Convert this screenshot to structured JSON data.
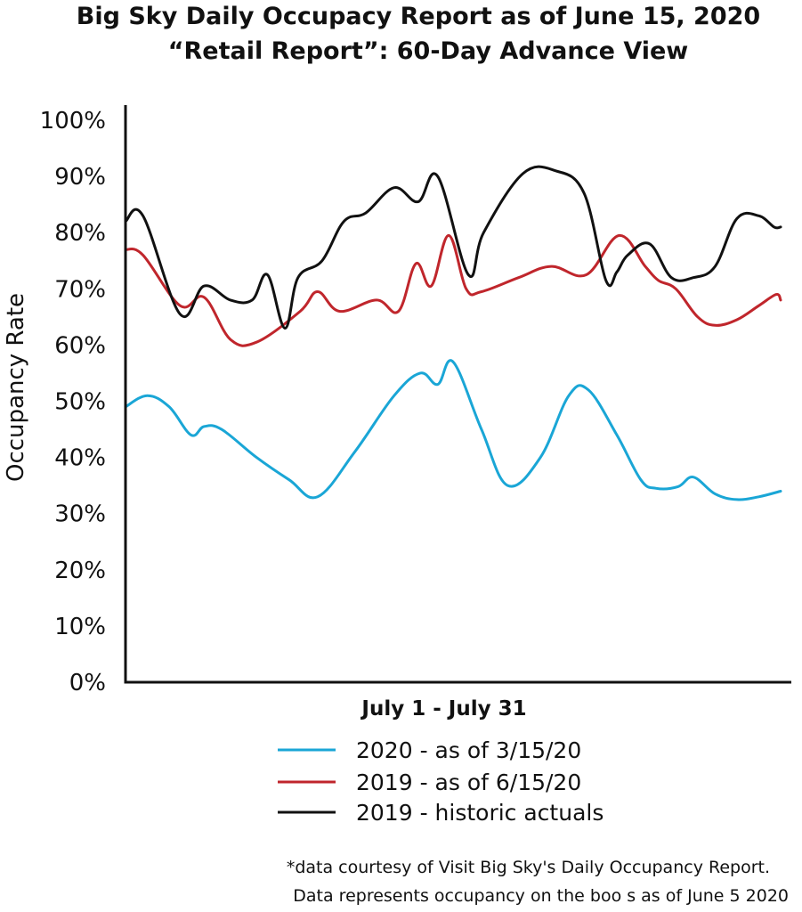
{
  "chart_data": {
    "type": "line",
    "title": "Big Sky Daily Occupacy Report  as of June 15, 2020",
    "subtitle": "“Retail Report”: 60-Day Advance View",
    "xlabel": "July 1 - July 31",
    "ylabel": "Occupancy Rate",
    "ylim": [
      0,
      100
    ],
    "xlim": [
      1,
      31
    ],
    "yticks": [
      "0%",
      "10%",
      "20%",
      "30%",
      "40%",
      "50%",
      "60%",
      "70%",
      "80%",
      "90%",
      "100%"
    ],
    "grid": false,
    "legend_position": "bottom",
    "series": [
      {
        "name": "2020 - as of 3/15/20",
        "color": "#1aa6d6",
        "x": [
          1,
          2,
          3,
          4,
          4.6,
          5.4,
          7,
          8.5,
          9.8,
          11.5,
          13.3,
          14.5,
          15.3,
          16,
          17.3,
          18.5,
          20,
          21.3,
          22.2,
          23.5,
          24.6,
          25.3,
          26.3,
          27,
          28,
          29,
          30,
          31
        ],
        "y": [
          49,
          51,
          49,
          44,
          45.5,
          45,
          40,
          36,
          33,
          41,
          51,
          55,
          53,
          57,
          45,
          35,
          40,
          51,
          52,
          44,
          36,
          34.5,
          34.8,
          36.5,
          33.5,
          32.5,
          33,
          34
        ]
      },
      {
        "name": "2019 - as of 6/15/20",
        "color": "#c0262c",
        "x": [
          1,
          1.8,
          3.5,
          4.6,
          5.8,
          7,
          9,
          9.8,
          10.8,
          12.5,
          13.5,
          14.3,
          15,
          15.8,
          16.6,
          17.3,
          19,
          20.5,
          22.1,
          23.6,
          24.8,
          25.4,
          26.2,
          27.2,
          28,
          29,
          30,
          30.8,
          31
        ],
        "y": [
          77,
          76,
          67,
          68.5,
          61,
          60.5,
          66,
          69.5,
          66,
          68,
          66,
          74.5,
          70.5,
          79.5,
          70,
          69.5,
          72,
          74,
          72.5,
          79.5,
          74,
          71.5,
          70,
          65,
          63.5,
          64.5,
          67,
          69,
          68
        ]
      },
      {
        "name": "2019 - historic actuals",
        "color": "#111111",
        "x": [
          1,
          1.8,
          3.5,
          4.6,
          5.8,
          6.8,
          7.5,
          8.3,
          8.9,
          10,
          11,
          12,
          13.3,
          14.4,
          15.3,
          16.7,
          17.4,
          19.2,
          20.7,
          22,
          23,
          23.5,
          24,
          25,
          26,
          27,
          28,
          29,
          30,
          30.7,
          31
        ],
        "y": [
          82,
          83,
          65.5,
          70.5,
          68,
          68,
          72.5,
          63,
          72,
          75,
          82,
          83.5,
          88,
          85.5,
          90,
          72.5,
          80,
          90.5,
          91,
          87,
          71.5,
          73,
          76,
          78,
          72,
          72,
          74,
          82.5,
          83,
          81,
          81
        ]
      }
    ],
    "footnote_lines": [
      "*data courtesy of Visit Big Sky's Daily Occupancy Report.",
      "Data represents occupancy on the boo  s as of June   5  2020"
    ]
  }
}
